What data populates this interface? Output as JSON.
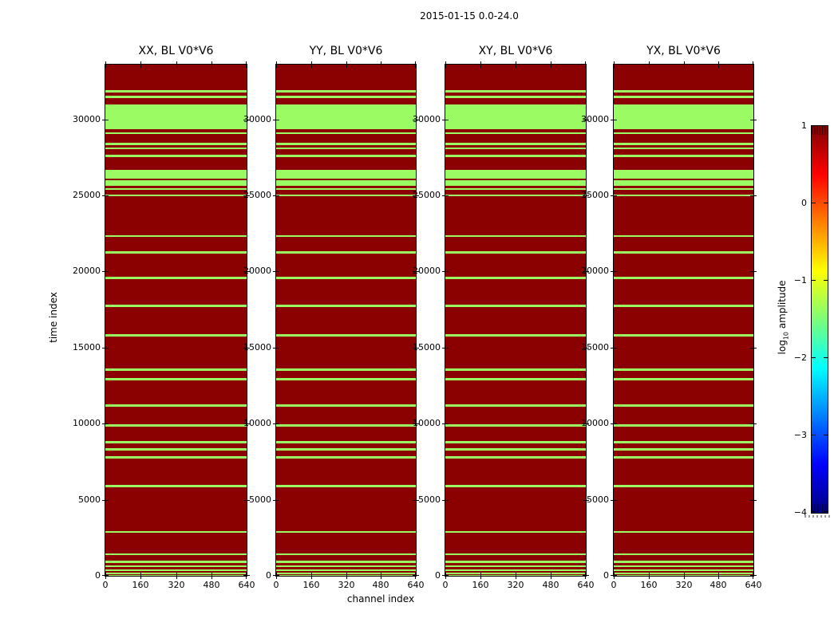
{
  "figure": {
    "title": "2015-01-15 0.0-24.0"
  },
  "chart_data": {
    "type": "heatmap",
    "title": "2015-01-15 0.0-24.0",
    "xlabel": "channel index",
    "ylabel": "time index",
    "xlim": [
      0,
      640
    ],
    "ylim": [
      0,
      33600
    ],
    "x_ticks": [
      0,
      160,
      320,
      480,
      640
    ],
    "y_ticks": [
      0,
      5000,
      10000,
      15000,
      20000,
      25000,
      30000
    ],
    "grid": false,
    "panels": [
      {
        "title": "XX, BL V0*V6"
      },
      {
        "title": "YY, BL V0*V6"
      },
      {
        "title": "XY, BL V0*V6"
      },
      {
        "title": "YX, BL V0*V6"
      }
    ],
    "colors": {
      "background_high_amplitude": "#8b0000",
      "flagged_stripe": "#9bfb63",
      "spine": "#000000"
    },
    "flagged_time_ranges": [
      [
        0,
        60
      ],
      [
        100,
        210
      ],
      [
        310,
        420
      ],
      [
        570,
        680
      ],
      [
        830,
        1000
      ],
      [
        1350,
        1470
      ],
      [
        2810,
        2960
      ],
      [
        5840,
        6000
      ],
      [
        7730,
        7880
      ],
      [
        8250,
        8400
      ],
      [
        8720,
        8870
      ],
      [
        9820,
        9970
      ],
      [
        11120,
        11270
      ],
      [
        12850,
        13000
      ],
      [
        13480,
        13630
      ],
      [
        15700,
        15880
      ],
      [
        17660,
        17820
      ],
      [
        19500,
        19670
      ],
      [
        21180,
        21330
      ],
      [
        22260,
        22400
      ],
      [
        24950,
        25080
      ],
      [
        25350,
        25490
      ],
      [
        25650,
        25980
      ],
      [
        26100,
        26700
      ],
      [
        27540,
        27690
      ],
      [
        28030,
        28170
      ],
      [
        28290,
        28450
      ],
      [
        29020,
        29160
      ],
      [
        29350,
        31000
      ],
      [
        31400,
        31560
      ],
      [
        31750,
        31950
      ]
    ],
    "colorbar": {
      "label_prefix": "log",
      "label_sub": "10",
      "label_suffix": " amplitude",
      "vmin": -4,
      "vmax": 1,
      "ticks": [
        1,
        0,
        -1,
        -2,
        -3,
        -4
      ],
      "colormap": "jet"
    }
  }
}
